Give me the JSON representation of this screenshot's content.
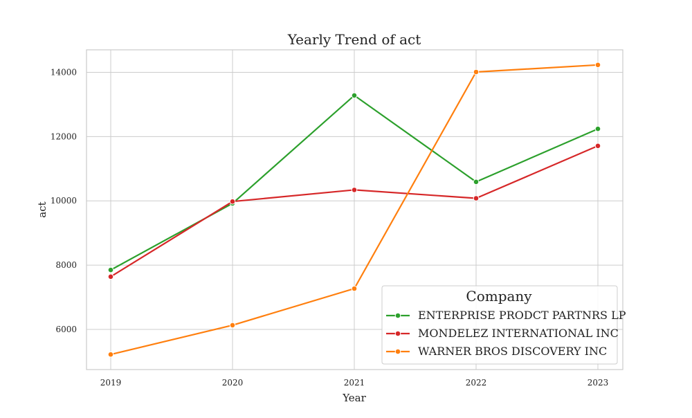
{
  "chart_data": {
    "type": "line",
    "title": "Yearly Trend of act",
    "xlabel": "Year",
    "ylabel": "act",
    "categories": [
      "2019",
      "2020",
      "2021",
      "2022",
      "2023"
    ],
    "yticks": [
      "6000",
      "8000",
      "10000",
      "12000",
      "14000"
    ],
    "ylim": [
      4750,
      14700
    ],
    "grid": true,
    "legend": {
      "title": "Company",
      "placement": "lower-right"
    },
    "series": [
      {
        "name": "ENTERPRISE PRODCT PARTNRS LP",
        "color": "#2ca02c",
        "values": [
          7850,
          9920,
          13280,
          10590,
          12240
        ]
      },
      {
        "name": "MONDELEZ INTERNATIONAL INC",
        "color": "#d62728",
        "values": [
          7640,
          9980,
          10340,
          10080,
          11710
        ]
      },
      {
        "name": "WARNER BROS DISCOVERY INC",
        "color": "#ff7f0e",
        "values": [
          5220,
          6130,
          7270,
          14010,
          14230
        ]
      }
    ]
  }
}
